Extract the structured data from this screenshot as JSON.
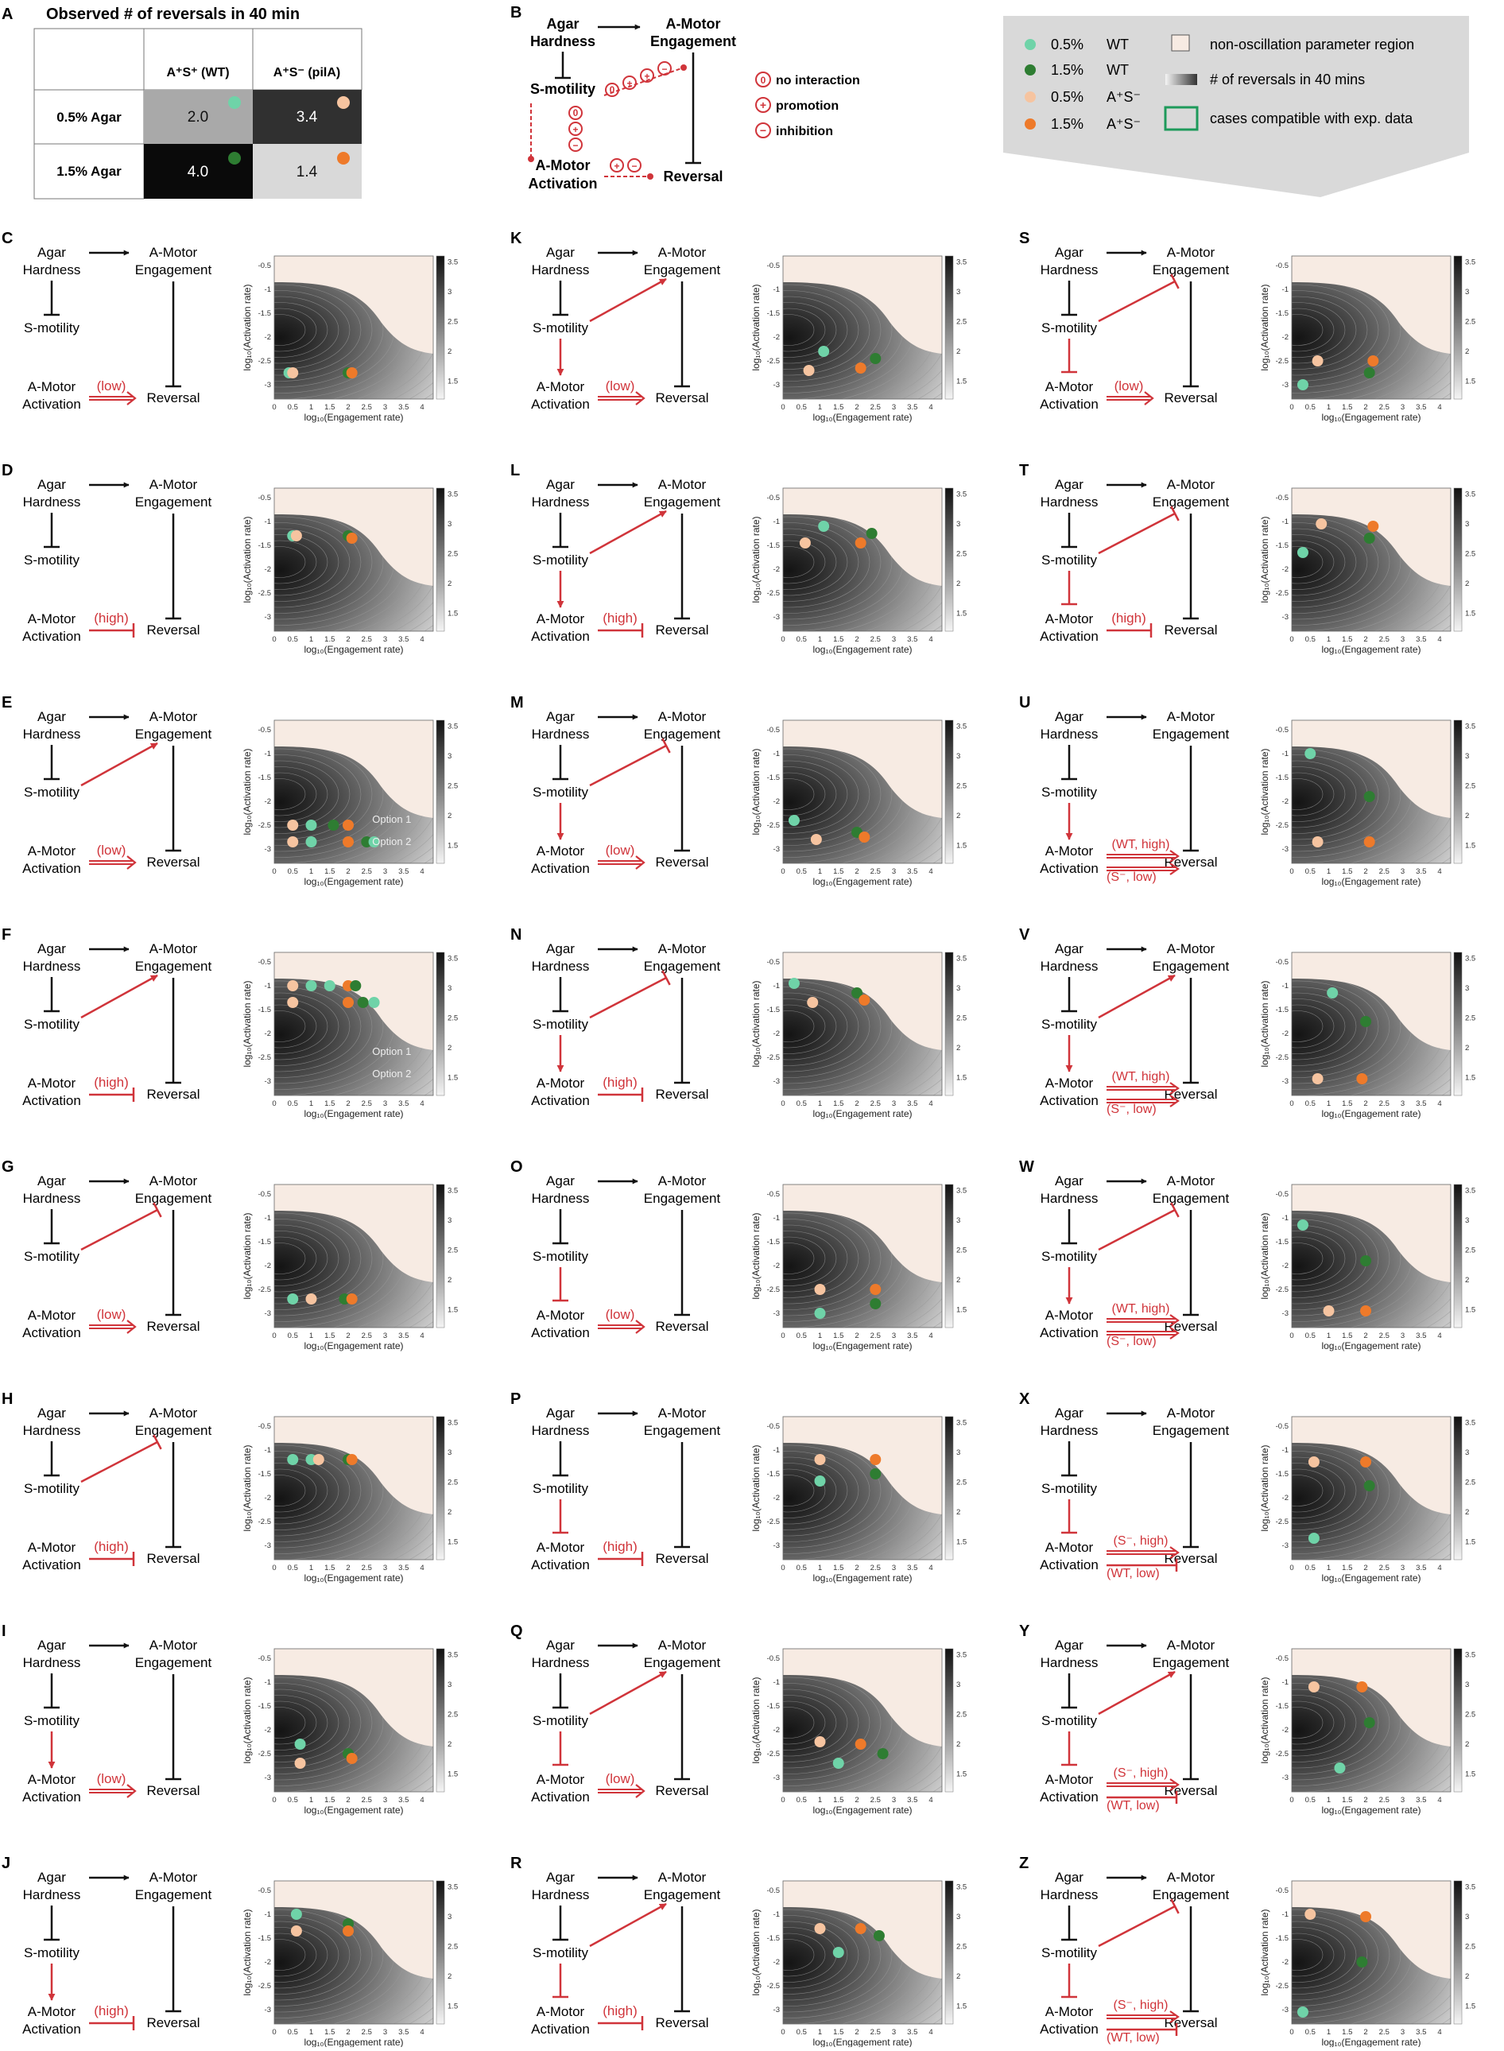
{
  "colors": {
    "wt05": "#6fd3a8",
    "wt15": "#2e7d32",
    "s05": "#f6c4a0",
    "s15": "#ee7a2a",
    "red": "#d0343a",
    "green_box": "#1e9a5b",
    "nonosc": "#f7ebe3"
  },
  "panelA": {
    "letter": "A",
    "title": "Observed # of reversals in 40 min",
    "col1": "A⁺S⁺ (WT)",
    "col2": "A⁺S⁻ (pilA)",
    "row1": "0.5% Agar",
    "row2": "1.5% Agar",
    "cells": [
      "2.0",
      "3.4",
      "4.0",
      "1.4"
    ]
  },
  "panelB": {
    "letter": "B",
    "agar": [
      "Agar",
      "Hardness"
    ],
    "engage": [
      "A-Motor",
      "Engagement"
    ],
    "smot": "S-motility",
    "activation": [
      "A-Motor",
      "Activation"
    ],
    "reversal": "Reversal",
    "leg_zero": "no interaction",
    "leg_plus": "promotion",
    "leg_minus": "inhibition"
  },
  "legend": {
    "items": [
      {
        "pct": "0.5%",
        "label": "WT"
      },
      {
        "pct": "1.5%",
        "label": "WT"
      },
      {
        "pct": "0.5%",
        "label": "A⁺S⁻"
      },
      {
        "pct": "1.5%",
        "label": "A⁺S⁻"
      }
    ],
    "nonosc": "non-oscillation parameter region",
    "gradient": "# of reversals in 40 mins",
    "compat": "cases compatible with exp. data"
  },
  "common": {
    "agar": [
      "Agar",
      "Hardness"
    ],
    "engage": [
      "A-Motor",
      "Engagement"
    ],
    "smot": "S-motility",
    "activation": [
      "A-Motor",
      "Activation"
    ],
    "reversal": "Reversal",
    "ylabel": "log₁₀(Activation rate)",
    "xlabel": "log₁₀(Engagement rate)",
    "xticks": [
      "0",
      "0.5",
      "1",
      "1.5",
      "2",
      "2.5",
      "3",
      "3.5",
      "4"
    ],
    "yticks": [
      "-0.5",
      "-1",
      "-1.5",
      "-2",
      "-2.5",
      "-3"
    ],
    "cbticks": [
      "3.5",
      "3",
      "2.5",
      "2",
      "1.5"
    ]
  },
  "panels": [
    {
      "letter": "C",
      "col": 0,
      "row": 0,
      "smEng": "none",
      "smAct": "none",
      "actType": "single",
      "labels": [
        "(low)"
      ],
      "dots": [
        [
          0.4,
          -2.75,
          "wt05"
        ],
        [
          0.5,
          -2.75,
          "s05"
        ],
        [
          2.0,
          -2.75,
          "wt15"
        ],
        [
          2.1,
          -2.75,
          "s15"
        ]
      ]
    },
    {
      "letter": "D",
      "col": 0,
      "row": 1,
      "smEng": "none",
      "smAct": "none",
      "actType": "single",
      "labels": [
        "(high)"
      ],
      "dots": [
        [
          0.5,
          -1.3,
          "wt05"
        ],
        [
          0.6,
          -1.3,
          "s05"
        ],
        [
          2.0,
          -1.3,
          "wt15"
        ],
        [
          2.1,
          -1.35,
          "s15"
        ]
      ]
    },
    {
      "letter": "E",
      "col": 0,
      "row": 2,
      "smEng": "arrow",
      "smAct": "none",
      "actType": "single",
      "labels": [
        "(low)"
      ],
      "options": [
        "Option 1",
        "Option 2"
      ],
      "dots": [
        [
          0.5,
          -2.5,
          "s05"
        ],
        [
          0.5,
          -2.85,
          "s05"
        ],
        [
          1.0,
          -2.5,
          "wt05"
        ],
        [
          1.0,
          -2.85,
          "wt05"
        ],
        [
          1.6,
          -2.5,
          "wt15"
        ],
        [
          2.0,
          -2.5,
          "s15"
        ],
        [
          2.0,
          -2.85,
          "s15"
        ],
        [
          2.5,
          -2.85,
          "wt15"
        ],
        [
          2.7,
          -2.85,
          "wt05"
        ]
      ]
    },
    {
      "letter": "F",
      "col": 0,
      "row": 3,
      "smEng": "arrow",
      "smAct": "none",
      "actType": "single",
      "labels": [
        "(high)"
      ],
      "options": [
        "Option 1",
        "Option 2"
      ],
      "dots": [
        [
          0.5,
          -1.0,
          "s05"
        ],
        [
          0.5,
          -1.35,
          "s05"
        ],
        [
          1.0,
          -1.0,
          "wt05"
        ],
        [
          1.5,
          -1.0,
          "wt05"
        ],
        [
          2.0,
          -1.0,
          "s15"
        ],
        [
          2.0,
          -1.35,
          "s15"
        ],
        [
          2.2,
          -1.0,
          "wt15"
        ],
        [
          2.4,
          -1.35,
          "wt15"
        ],
        [
          2.7,
          -1.35,
          "wt05"
        ]
      ]
    },
    {
      "letter": "G",
      "col": 0,
      "row": 4,
      "smEng": "inhib",
      "smAct": "none",
      "actType": "single",
      "labels": [
        "(low)"
      ],
      "dots": [
        [
          0.5,
          -2.7,
          "wt05"
        ],
        [
          1.0,
          -2.7,
          "s05"
        ],
        [
          1.9,
          -2.7,
          "wt15"
        ],
        [
          2.1,
          -2.7,
          "s15"
        ]
      ]
    },
    {
      "letter": "H",
      "col": 0,
      "row": 5,
      "smEng": "inhib",
      "smAct": "none",
      "actType": "single",
      "labels": [
        "(high)"
      ],
      "dots": [
        [
          0.5,
          -1.2,
          "wt05"
        ],
        [
          1.0,
          -1.2,
          "wt05"
        ],
        [
          1.2,
          -1.2,
          "s05"
        ],
        [
          2.0,
          -1.2,
          "wt15"
        ],
        [
          2.1,
          -1.2,
          "s15"
        ]
      ]
    },
    {
      "letter": "I",
      "col": 0,
      "row": 6,
      "smEng": "none",
      "smAct": "arrow",
      "actType": "single",
      "labels": [
        "(low)"
      ],
      "dots": [
        [
          0.7,
          -2.3,
          "wt05"
        ],
        [
          0.7,
          -2.7,
          "s05"
        ],
        [
          2.0,
          -2.5,
          "wt15"
        ],
        [
          2.1,
          -2.6,
          "s15"
        ]
      ]
    },
    {
      "letter": "J",
      "col": 0,
      "row": 7,
      "smEng": "none",
      "smAct": "arrow",
      "actType": "single",
      "labels": [
        "(high)"
      ],
      "dots": [
        [
          0.6,
          -1.0,
          "wt05"
        ],
        [
          0.6,
          -1.35,
          "s05"
        ],
        [
          2.0,
          -1.2,
          "wt15"
        ],
        [
          2.0,
          -1.35,
          "s15"
        ]
      ]
    },
    {
      "letter": "K",
      "col": 1,
      "row": 0,
      "smEng": "arrow",
      "smAct": "arrow",
      "actType": "single",
      "labels": [
        "(low)"
      ],
      "dots": [
        [
          1.1,
          -2.3,
          "wt05"
        ],
        [
          0.7,
          -2.7,
          "s05"
        ],
        [
          2.5,
          -2.45,
          "wt15"
        ],
        [
          2.1,
          -2.65,
          "s15"
        ]
      ]
    },
    {
      "letter": "L",
      "col": 1,
      "row": 1,
      "smEng": "arrow",
      "smAct": "arrow",
      "actType": "single",
      "labels": [
        "(high)"
      ],
      "dots": [
        [
          1.1,
          -1.1,
          "wt05"
        ],
        [
          0.6,
          -1.45,
          "s05"
        ],
        [
          2.4,
          -1.25,
          "wt15"
        ],
        [
          2.1,
          -1.45,
          "s15"
        ]
      ]
    },
    {
      "letter": "M",
      "col": 1,
      "row": 2,
      "smEng": "inhib",
      "smAct": "arrow",
      "actType": "single",
      "labels": [
        "(low)"
      ],
      "dots": [
        [
          0.3,
          -2.4,
          "wt05"
        ],
        [
          0.9,
          -2.8,
          "s05"
        ],
        [
          2.0,
          -2.65,
          "wt15"
        ],
        [
          2.2,
          -2.75,
          "s15"
        ]
      ]
    },
    {
      "letter": "N",
      "col": 1,
      "row": 3,
      "smEng": "inhib",
      "smAct": "arrow",
      "actType": "single",
      "labels": [
        "(high)"
      ],
      "dots": [
        [
          0.3,
          -0.95,
          "wt05"
        ],
        [
          0.8,
          -1.35,
          "s05"
        ],
        [
          2.0,
          -1.15,
          "wt15"
        ],
        [
          2.2,
          -1.3,
          "s15"
        ]
      ]
    },
    {
      "letter": "O",
      "col": 1,
      "row": 4,
      "smEng": "none",
      "smAct": "inhib",
      "actType": "single",
      "labels": [
        "(low)"
      ],
      "dots": [
        [
          1.0,
          -2.5,
          "s05"
        ],
        [
          1.0,
          -3.0,
          "wt05"
        ],
        [
          2.5,
          -2.5,
          "s15"
        ],
        [
          2.5,
          -2.8,
          "wt15"
        ]
      ]
    },
    {
      "letter": "P",
      "col": 1,
      "row": 5,
      "smEng": "none",
      "smAct": "inhib",
      "actType": "single",
      "labels": [
        "(high)"
      ],
      "dots": [
        [
          1.0,
          -1.2,
          "s05"
        ],
        [
          1.0,
          -1.65,
          "wt05"
        ],
        [
          2.5,
          -1.2,
          "s15"
        ],
        [
          2.5,
          -1.5,
          "wt15"
        ]
      ]
    },
    {
      "letter": "Q",
      "col": 1,
      "row": 6,
      "smEng": "arrow",
      "smAct": "inhib",
      "actType": "single",
      "labels": [
        "(low)"
      ],
      "dots": [
        [
          1.0,
          -2.25,
          "s05"
        ],
        [
          1.5,
          -2.7,
          "wt05"
        ],
        [
          2.1,
          -2.3,
          "s15"
        ],
        [
          2.7,
          -2.5,
          "wt15"
        ]
      ]
    },
    {
      "letter": "R",
      "col": 1,
      "row": 7,
      "smEng": "arrow",
      "smAct": "inhib",
      "actType": "single",
      "labels": [
        "(high)"
      ],
      "dots": [
        [
          1.0,
          -1.3,
          "s05"
        ],
        [
          1.5,
          -1.8,
          "wt05"
        ],
        [
          2.1,
          -1.3,
          "s15"
        ],
        [
          2.6,
          -1.45,
          "wt15"
        ]
      ]
    },
    {
      "letter": "S",
      "col": 2,
      "row": 0,
      "smEng": "inhib",
      "smAct": "inhib",
      "actType": "single",
      "labels": [
        "(low)"
      ],
      "dots": [
        [
          0.7,
          -2.5,
          "s05"
        ],
        [
          0.3,
          -3.0,
          "wt05"
        ],
        [
          2.2,
          -2.5,
          "s15"
        ],
        [
          2.1,
          -2.75,
          "wt15"
        ]
      ]
    },
    {
      "letter": "T",
      "col": 2,
      "row": 1,
      "smEng": "inhib",
      "smAct": "inhib",
      "actType": "single",
      "labels": [
        "(high)"
      ],
      "dots": [
        [
          0.8,
          -1.05,
          "s05"
        ],
        [
          0.3,
          -1.65,
          "wt05"
        ],
        [
          2.2,
          -1.1,
          "s15"
        ],
        [
          2.1,
          -1.35,
          "wt15"
        ]
      ]
    },
    {
      "letter": "U",
      "col": 2,
      "row": 2,
      "smEng": "none",
      "smAct": "arrow",
      "actType": "double",
      "labels": [
        "(WT, high)",
        "(S⁻, low)"
      ],
      "box": true,
      "dots": [
        [
          0.5,
          -1.0,
          "wt05"
        ],
        [
          2.1,
          -1.9,
          "wt15"
        ],
        [
          0.7,
          -2.85,
          "s05"
        ],
        [
          2.1,
          -2.85,
          "s15"
        ]
      ]
    },
    {
      "letter": "V",
      "col": 2,
      "row": 3,
      "smEng": "arrow",
      "smAct": "arrow",
      "actType": "double",
      "labels": [
        "(WT, high)",
        "(S⁻, low)"
      ],
      "box": true,
      "dots": [
        [
          1.1,
          -1.15,
          "wt05"
        ],
        [
          2.0,
          -1.75,
          "wt15"
        ],
        [
          0.7,
          -2.95,
          "s05"
        ],
        [
          1.9,
          -2.95,
          "s15"
        ]
      ]
    },
    {
      "letter": "W",
      "col": 2,
      "row": 4,
      "smEng": "inhib",
      "smAct": "arrow",
      "actType": "double",
      "labels": [
        "(WT, high)",
        "(S⁻, low)"
      ],
      "box": true,
      "dots": [
        [
          0.3,
          -1.15,
          "wt05"
        ],
        [
          2.0,
          -1.9,
          "wt15"
        ],
        [
          1.0,
          -2.95,
          "s05"
        ],
        [
          2.0,
          -2.95,
          "s15"
        ]
      ]
    },
    {
      "letter": "X",
      "col": 2,
      "row": 5,
      "smEng": "none",
      "smAct": "inhib",
      "actType": "doubleInh",
      "labels": [
        "(S⁻, high)",
        "(WT, low)"
      ],
      "dots": [
        [
          0.6,
          -1.25,
          "s05"
        ],
        [
          2.0,
          -1.25,
          "s15"
        ],
        [
          2.1,
          -1.75,
          "wt15"
        ],
        [
          0.6,
          -2.85,
          "wt05"
        ]
      ]
    },
    {
      "letter": "Y",
      "col": 2,
      "row": 6,
      "smEng": "arrow",
      "smAct": "inhib",
      "actType": "doubleInh",
      "labels": [
        "(S⁻, high)",
        "(WT, low)"
      ],
      "dots": [
        [
          0.6,
          -1.1,
          "s05"
        ],
        [
          1.9,
          -1.1,
          "s15"
        ],
        [
          2.1,
          -1.85,
          "wt15"
        ],
        [
          1.3,
          -2.8,
          "wt05"
        ]
      ]
    },
    {
      "letter": "Z",
      "col": 2,
      "row": 7,
      "smEng": "inhib",
      "smAct": "inhib",
      "actType": "doubleInh",
      "labels": [
        "(S⁻, high)",
        "(WT, low)"
      ],
      "dots": [
        [
          0.5,
          -1.0,
          "s05"
        ],
        [
          2.0,
          -1.05,
          "s15"
        ],
        [
          1.9,
          -2.0,
          "wt15"
        ],
        [
          0.3,
          -3.05,
          "wt05"
        ]
      ]
    }
  ]
}
